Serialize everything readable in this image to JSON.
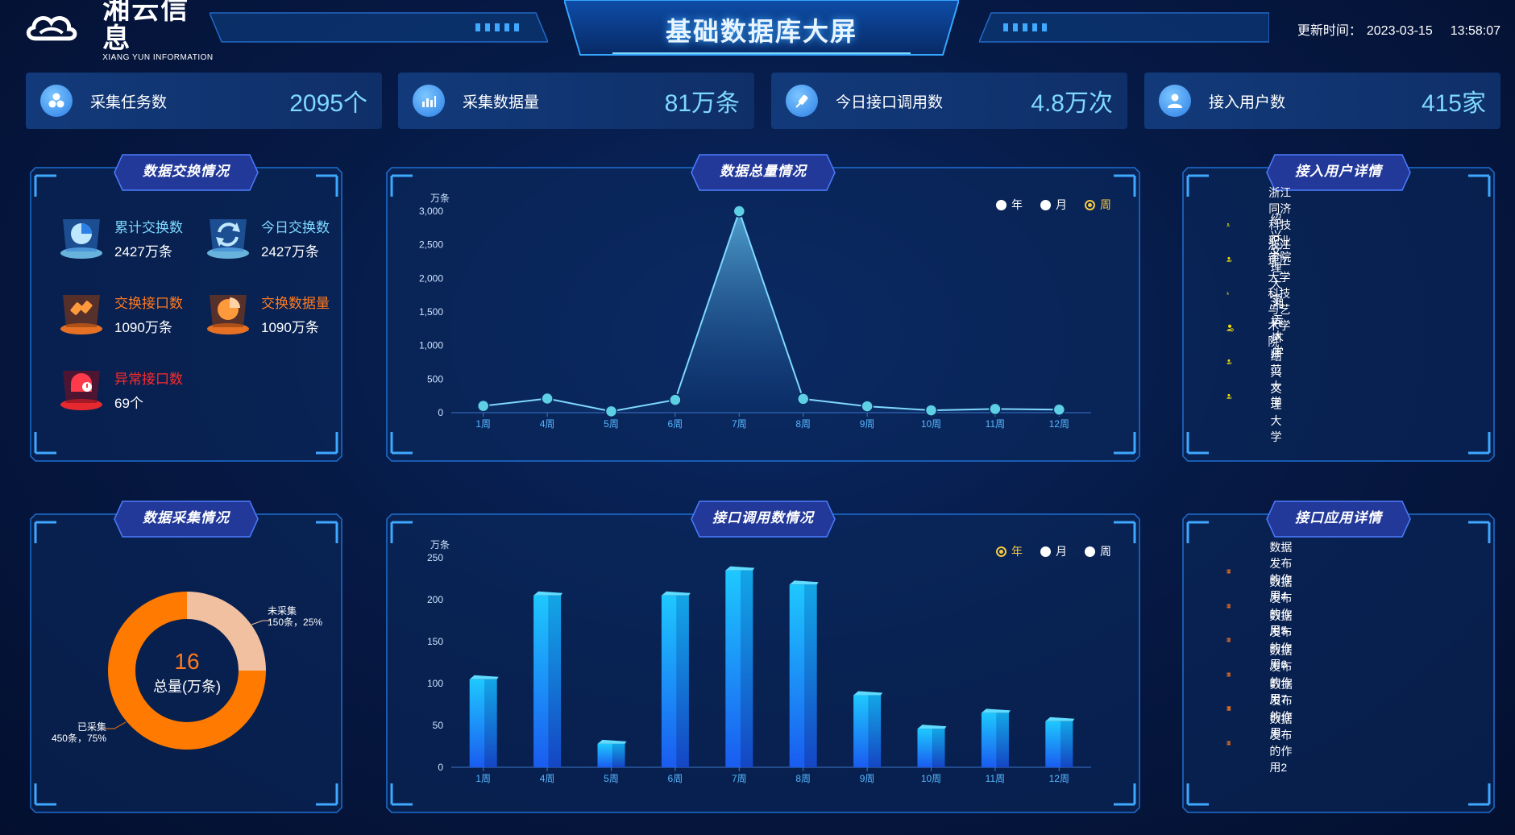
{
  "header": {
    "logo_main": "湘云信息",
    "logo_sub": "XIANG YUN INFORMATION",
    "title": "基础数据库大屏",
    "update_label": "更新时间：",
    "update_date": "2023-03-15",
    "update_time": "13:58:07"
  },
  "stats": [
    {
      "label": "采集任务数",
      "value": "2095个",
      "icon": "cubes-icon"
    },
    {
      "label": "采集数据量",
      "value": "81万条",
      "icon": "bar-chart-icon"
    },
    {
      "label": "今日接口调用数",
      "value": "4.8万次",
      "icon": "plug-icon"
    },
    {
      "label": "接入用户数",
      "value": "415家",
      "icon": "user-icon"
    }
  ],
  "exchange": {
    "title": "数据交换情况",
    "items": [
      {
        "label": "累计交换数",
        "value": "2427万条",
        "color": "#7fd8ff",
        "icon": "pie-clock-icon"
      },
      {
        "label": "今日交换数",
        "value": "2427万条",
        "color": "#7fd8ff",
        "icon": "refresh-icon"
      },
      {
        "label": "交换接口数",
        "value": "1090万条",
        "color": "#ff7a1f",
        "icon": "plug-connect-icon"
      },
      {
        "label": "交换数据量",
        "value": "1090万条",
        "color": "#ff7a1f",
        "icon": "pie-chart-icon"
      },
      {
        "label": "异常接口数",
        "value": "69个",
        "color": "#ff2a2a",
        "icon": "alert-icon"
      }
    ]
  },
  "total_chart": {
    "title": "数据总量情况",
    "legend": [
      {
        "label": "年",
        "active": false
      },
      {
        "label": "月",
        "active": false
      },
      {
        "label": "周",
        "active": true
      }
    ]
  },
  "users_panel": {
    "title": "接入用户详情",
    "items": [
      "浙江同济科技职业学院",
      "绍兴文理大学",
      "浙江理工大学科技与艺术学院",
      "湘云大学",
      "杭州师范大学",
      "绍兴文理大学"
    ]
  },
  "collect_panel": {
    "title": "数据采集情况",
    "center_value": "16",
    "center_label": "总量(万条)",
    "label_uncollected_name": "未采集",
    "label_uncollected_detail": "150条，25%",
    "label_collected_name": "已采集",
    "label_collected_detail": "450条，75%"
  },
  "api_chart": {
    "title": "接口调用数情况",
    "legend": [
      {
        "label": "年",
        "active": true
      },
      {
        "label": "月",
        "active": false
      },
      {
        "label": "周",
        "active": false
      }
    ]
  },
  "api_panel": {
    "title": "接口应用详情",
    "items": [
      "数据发布的作用4",
      "数据发布的作用5",
      "数据发布的作用6",
      "数据发布的作用7",
      "数据发布的作用",
      "数据发布的作用2"
    ]
  },
  "chart_data": [
    {
      "type": "line",
      "title": "数据总量情况",
      "ylabel": "万条",
      "categories": [
        "1周",
        "4周",
        "5周",
        "6周",
        "7周",
        "8周",
        "9周",
        "10周",
        "11周",
        "12周"
      ],
      "values": [
        100,
        210,
        20,
        190,
        3000,
        205,
        95,
        35,
        55,
        45
      ],
      "yticks": [
        "0",
        "500",
        "1,000",
        "1,500",
        "2,000",
        "2,500",
        "3,000"
      ],
      "ylim": [
        0,
        3000
      ],
      "area_fill": true
    },
    {
      "type": "bar",
      "title": "接口调用数情况",
      "ylabel": "万条",
      "categories": [
        "1周",
        "4周",
        "5周",
        "6周",
        "7周",
        "8周",
        "9周",
        "10周",
        "11周",
        "12周"
      ],
      "values": [
        105,
        205,
        28,
        205,
        235,
        218,
        86,
        46,
        65,
        55
      ],
      "yticks": [
        "0",
        "50",
        "100",
        "150",
        "200",
        "250"
      ],
      "ylim": [
        0,
        250
      ]
    },
    {
      "type": "pie",
      "title": "数据采集情况",
      "slices": [
        {
          "name": "未采集",
          "value": 150,
          "percent": 25,
          "color": "#f1c0a0"
        },
        {
          "name": "已采集",
          "value": 450,
          "percent": 75,
          "color": "#ff7a00"
        }
      ]
    }
  ]
}
